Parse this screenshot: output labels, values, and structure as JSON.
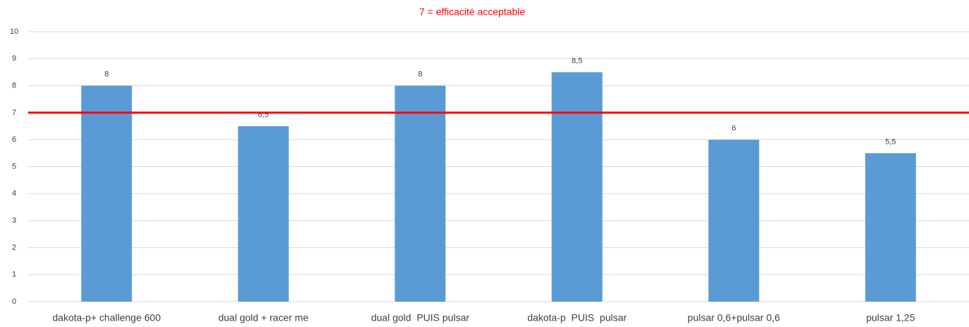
{
  "chart_data": {
    "type": "bar",
    "categories": [
      "dakota-p+ challenge 600",
      "dual gold + racer me",
      "dual gold  PUIS pulsar",
      "dakota-p  PUIS  pulsar",
      "pulsar 0,6+pulsar 0,6",
      "pulsar 1,25"
    ],
    "values": [
      8,
      6.5,
      8,
      8.5,
      6,
      5.5
    ],
    "value_labels": [
      "8",
      "6,5",
      "8",
      "8,5",
      "6",
      "5,5"
    ],
    "color": "#5b9bd5",
    "ylim": [
      0,
      10
    ],
    "yticks": [
      0,
      1,
      2,
      3,
      4,
      5,
      6,
      7,
      8,
      9,
      10
    ],
    "grid": true,
    "reference_line": {
      "value": 7,
      "label": "7 = efficacité acceptable",
      "color": "#ff0000"
    }
  }
}
